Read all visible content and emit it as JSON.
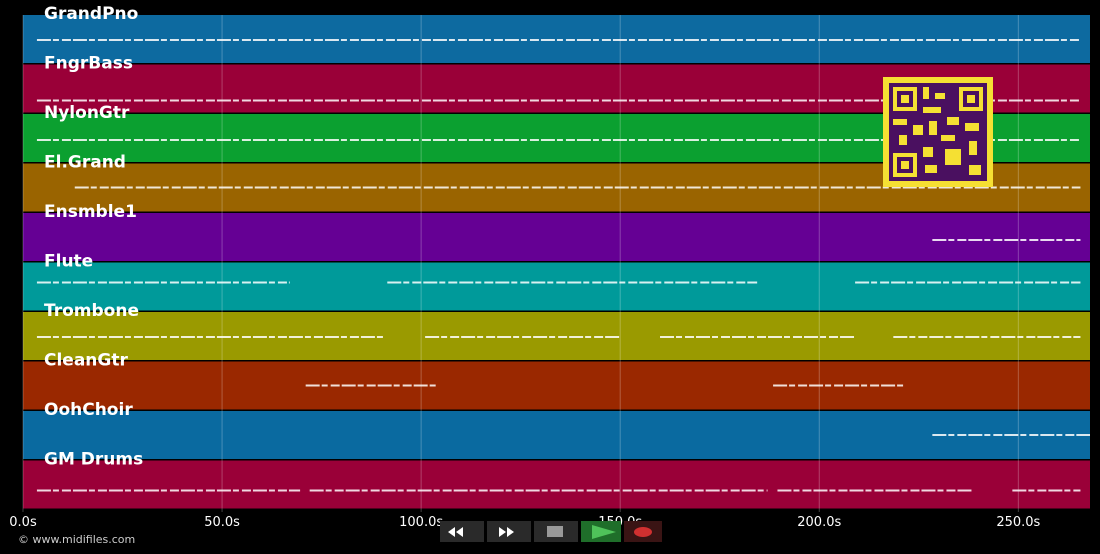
{
  "tracks": [
    {
      "name": "GrandPno",
      "color": "#0d6aa0",
      "spans": [
        [
          3.5,
          265.6
        ]
      ]
    },
    {
      "name": "FngrBass",
      "color": "#9a0038",
      "spans": [
        [
          3.5,
          265.6
        ]
      ]
    },
    {
      "name": "NylonGtr",
      "color": "#0ba030",
      "spans": [
        [
          3.5,
          265.6
        ]
      ]
    },
    {
      "name": "El.Grand",
      "color": "#9a6400",
      "spans": [
        [
          13,
          265.6
        ]
      ]
    },
    {
      "name": "Ensmble1",
      "color": "#650094",
      "spans": [
        [
          228.4,
          265.6
        ]
      ]
    },
    {
      "name": "Flute",
      "color": "#009a9a",
      "spans": [
        [
          3.5,
          67
        ],
        [
          91.5,
          184.4
        ],
        [
          209,
          265.6
        ]
      ]
    },
    {
      "name": "Trombone",
      "color": "#9a9a00",
      "spans": [
        [
          3.5,
          91
        ],
        [
          101,
          150
        ],
        [
          160,
          209
        ],
        [
          218.6,
          265.6
        ]
      ]
    },
    {
      "name": "CleanGtr",
      "color": "#9a2800",
      "spans": [
        [
          71,
          104
        ],
        [
          188.4,
          221.6
        ]
      ]
    },
    {
      "name": "OohChoir",
      "color": "#0a6aa0",
      "spans": [
        [
          228.4,
          268
        ]
      ]
    },
    {
      "name": "GM Drums",
      "color": "#9a0038",
      "spans": [
        [
          3.5,
          69.6
        ],
        [
          72,
          187
        ],
        [
          189.5,
          238.4
        ],
        [
          248.5,
          265.6
        ]
      ]
    }
  ],
  "time_axis": {
    "xlim": [
      0,
      268
    ],
    "xticks": [
      {
        "value": 0,
        "label": "0.0s"
      },
      {
        "value": 50,
        "label": "50.0s"
      },
      {
        "value": 100,
        "label": "100.0s"
      },
      {
        "value": 150,
        "label": "150.0s"
      },
      {
        "value": 200,
        "label": "200.0s"
      },
      {
        "value": 250,
        "label": "250.0s"
      }
    ]
  },
  "footer": {
    "copyright": "© www.midifiles.com"
  }
}
